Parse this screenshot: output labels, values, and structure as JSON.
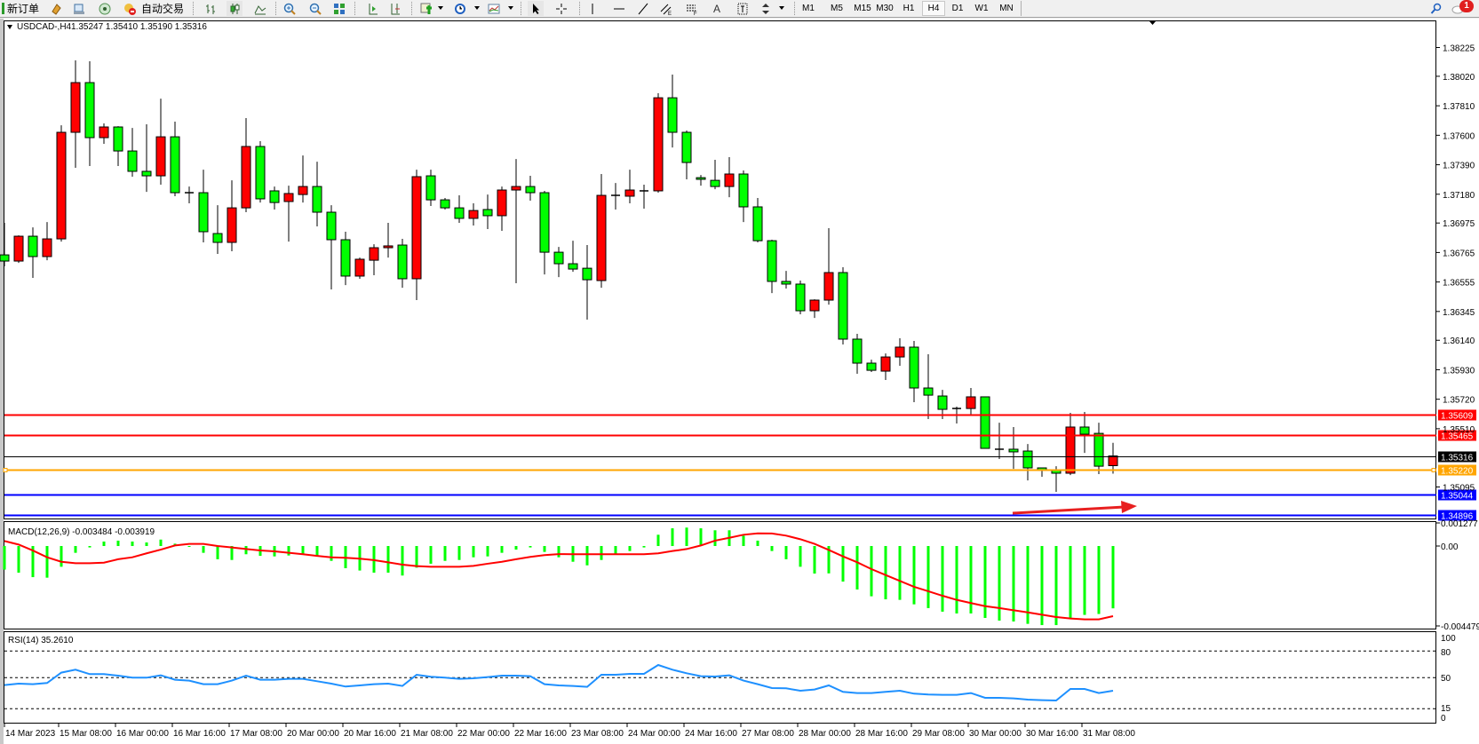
{
  "toolbar": {
    "new_order": "新订单",
    "auto_trading": "自动交易",
    "timeframes": [
      "M1",
      "M5",
      "M15",
      "M30",
      "H1",
      "H4",
      "D1",
      "W1",
      "MN"
    ],
    "active_timeframe": "H4",
    "notification_count": "1",
    "icons": [
      "new-order-icon",
      "market-watch-icon",
      "navigator-icon",
      "signals-icon",
      "auto-trading-icon",
      "bar-chart-icon",
      "candlestick-icon",
      "line-chart-icon",
      "zoom-in-icon",
      "zoom-out-icon",
      "tile-windows-icon",
      "auto-scroll-icon",
      "chart-shift-icon",
      "indicators-icon",
      "periods-icon",
      "templates-icon",
      "cursor-icon",
      "crosshair-icon",
      "vertical-line-icon",
      "horizontal-line-icon",
      "trendline-icon",
      "equidistant-channel-icon",
      "fibonacci-icon",
      "text-icon",
      "text-label-icon",
      "arrows-icon",
      "search-icon",
      "chat-icon"
    ]
  },
  "chart_data": {
    "type": "candlestick",
    "symbol": "USDCAD-,H4",
    "ohlc_readout": "1.35247 1.35410 1.35190 1.35316",
    "colors": {
      "bull": "#ff0000",
      "bear": "#00ff00",
      "outline": "#000000"
    },
    "price": {
      "axis_ticks": [
        "1.38225",
        "1.38020",
        "1.37810",
        "1.37600",
        "1.37390",
        "1.37180",
        "1.36975",
        "1.36765",
        "1.36555",
        "1.36345",
        "1.36140",
        "1.35930",
        "1.35720",
        "1.35510",
        "1.35095"
      ],
      "candles_ohlc": [
        [
          1.36748,
          1.36976,
          1.36666,
          1.36704
        ],
        [
          1.36704,
          1.36887,
          1.36691,
          1.36881
        ],
        [
          1.36881,
          1.36944,
          1.36584,
          1.36736
        ],
        [
          1.36736,
          1.36982,
          1.3671,
          1.36862
        ],
        [
          1.36862,
          1.37671,
          1.36843,
          1.37621
        ],
        [
          1.37621,
          1.38133,
          1.37368,
          1.37975
        ],
        [
          1.37975,
          1.38127,
          1.37381,
          1.37583
        ],
        [
          1.37583,
          1.37684,
          1.37539,
          1.37659
        ],
        [
          1.37659,
          1.37665,
          1.37381,
          1.37488
        ],
        [
          1.37488,
          1.37652,
          1.37305,
          1.37343
        ],
        [
          1.37343,
          1.37678,
          1.37197,
          1.37311
        ],
        [
          1.37311,
          1.37861,
          1.37248,
          1.37589
        ],
        [
          1.37589,
          1.37697,
          1.37166,
          1.37191
        ],
        [
          1.37191,
          1.37235,
          1.37115,
          1.37185
        ],
        [
          1.37191,
          1.37355,
          1.36837,
          1.36913
        ],
        [
          1.369,
          1.37102,
          1.36755,
          1.36837
        ],
        [
          1.36837,
          1.37279,
          1.36774,
          1.37083
        ],
        [
          1.37083,
          1.37722,
          1.37052,
          1.3752
        ],
        [
          1.3752,
          1.37558,
          1.37121,
          1.37147
        ],
        [
          1.37204,
          1.37235,
          1.37071,
          1.37121
        ],
        [
          1.37128,
          1.37241,
          1.36843,
          1.37185
        ],
        [
          1.37178,
          1.37456,
          1.37121,
          1.37235
        ],
        [
          1.37235,
          1.37412,
          1.36951,
          1.37052
        ],
        [
          1.37052,
          1.37102,
          1.36502,
          1.36856
        ],
        [
          1.36856,
          1.36913,
          1.36533,
          1.36597
        ],
        [
          1.36597,
          1.36729,
          1.36578,
          1.36717
        ],
        [
          1.3671,
          1.36824,
          1.36603,
          1.36799
        ],
        [
          1.36799,
          1.36976,
          1.36729,
          1.36812
        ],
        [
          1.36818,
          1.36862,
          1.36514,
          1.36578
        ],
        [
          1.36578,
          1.37355,
          1.36426,
          1.37305
        ],
        [
          1.37311,
          1.37355,
          1.37096,
          1.3714
        ],
        [
          1.3714,
          1.37153,
          1.37071,
          1.37083
        ],
        [
          1.37083,
          1.37172,
          1.36976,
          1.37008
        ],
        [
          1.37008,
          1.37115,
          1.36957,
          1.37064
        ],
        [
          1.37071,
          1.37178,
          1.36932,
          1.37027
        ],
        [
          1.37027,
          1.37235,
          1.36919,
          1.3721
        ],
        [
          1.3721,
          1.37431,
          1.36546,
          1.37235
        ],
        [
          1.37235,
          1.37311,
          1.37134,
          1.37191
        ],
        [
          1.37191,
          1.37204,
          1.36609,
          1.36767
        ],
        [
          1.36767,
          1.36805,
          1.3659,
          1.36685
        ],
        [
          1.36685,
          1.36849,
          1.36628,
          1.36647
        ],
        [
          1.36653,
          1.36818,
          1.36287,
          1.36571
        ],
        [
          1.36565,
          1.37324,
          1.36514,
          1.37172
        ],
        [
          1.37172,
          1.3726,
          1.37071,
          1.37169
        ],
        [
          1.37166,
          1.37355,
          1.37115,
          1.3721
        ],
        [
          1.37204,
          1.37248,
          1.37077,
          1.37201
        ],
        [
          1.37204,
          1.37899,
          1.37191,
          1.37867
        ],
        [
          1.37867,
          1.38032,
          1.37513,
          1.37621
        ],
        [
          1.37621,
          1.37634,
          1.37286,
          1.37406
        ],
        [
          1.37298,
          1.37317,
          1.37241,
          1.37286
        ],
        [
          1.37279,
          1.37425,
          1.37216,
          1.37235
        ],
        [
          1.37235,
          1.37444,
          1.37159,
          1.37324
        ],
        [
          1.37324,
          1.37349,
          1.36982,
          1.3709
        ],
        [
          1.3709,
          1.37153,
          1.36837,
          1.36849
        ],
        [
          1.36849,
          1.36856,
          1.36476,
          1.36559
        ],
        [
          1.36559,
          1.36634,
          1.36508,
          1.3654
        ],
        [
          1.3654,
          1.36565,
          1.36325,
          1.3635
        ],
        [
          1.3635,
          1.36432,
          1.36299,
          1.36426
        ],
        [
          1.36426,
          1.36938,
          1.36394,
          1.36622
        ],
        [
          1.36622,
          1.3666,
          1.3611,
          1.36148
        ],
        [
          1.36148,
          1.36186,
          1.35901,
          1.35977
        ],
        [
          1.35977,
          1.36002,
          1.35914,
          1.35926
        ],
        [
          1.3592,
          1.36046,
          1.35857,
          1.36021
        ],
        [
          1.36021,
          1.36154,
          1.35958,
          1.36091
        ],
        [
          1.36091,
          1.36135,
          1.35699,
          1.358
        ],
        [
          1.358,
          1.3604,
          1.35579,
          1.35749
        ],
        [
          1.35743,
          1.35787,
          1.35579,
          1.35648
        ],
        [
          1.35654,
          1.35667,
          1.35547,
          1.3565
        ],
        [
          1.35654,
          1.358,
          1.3561,
          1.35737
        ],
        [
          1.35737,
          1.3574,
          1.3537,
          1.3537
        ],
        [
          1.35364,
          1.35553,
          1.35294,
          1.35362
        ],
        [
          1.35364,
          1.35522,
          1.35224,
          1.35345
        ],
        [
          1.35351,
          1.35401,
          1.35142,
          1.35231
        ],
        [
          1.35231,
          1.35233,
          1.35168,
          1.35212
        ],
        [
          1.35212,
          1.35243,
          1.3506,
          1.35193
        ],
        [
          1.35193,
          1.35623,
          1.3518,
          1.35522
        ],
        [
          1.35522,
          1.35629,
          1.35338,
          1.35471
        ],
        [
          1.35477,
          1.35553,
          1.35187,
          1.35243
        ],
        [
          1.35247,
          1.3541,
          1.3519,
          1.35316
        ]
      ],
      "levels": [
        {
          "price": "1.35609",
          "color": "#ff0000",
          "kind": "horizontal-line"
        },
        {
          "price": "1.35465",
          "color": "#ff0000",
          "kind": "horizontal-line"
        },
        {
          "price": "1.35316",
          "color": "#000000",
          "kind": "bid-line"
        },
        {
          "price": "1.35220",
          "color": "#ffa500",
          "kind": "horizontal-line"
        },
        {
          "price": "1.35044",
          "color": "#0000ff",
          "kind": "horizontal-line"
        },
        {
          "price": "1.34896",
          "color": "#0000ff",
          "kind": "horizontal-line"
        }
      ],
      "arrow_color": "#e82020"
    },
    "macd": {
      "title": "MACD(12,26,9) -0.003484 -0.003919",
      "axis_ticks": [
        "0.001277",
        "0.00",
        "-0.004479"
      ],
      "histogram_color": "#00ff00",
      "signal_color": "#ff0000",
      "histogram": [
        -0.00132,
        -0.00149,
        -0.00174,
        -0.00177,
        -0.00116,
        -0.00038,
        -8e-05,
        0.00025,
        0.0003,
        0.00025,
        0.0002,
        0.00036,
        0.00013,
        0.0,
        -0.00038,
        -0.00074,
        -0.00078,
        -0.00046,
        -0.00055,
        -0.00058,
        -0.00053,
        -0.00045,
        -0.00058,
        -0.00083,
        -0.00124,
        -0.00137,
        -0.00149,
        -0.00149,
        -0.00165,
        -0.00121,
        -0.00099,
        -0.00083,
        -0.00078,
        -0.00063,
        -0.00058,
        -0.00038,
        -0.0002,
        -8e-05,
        -0.00033,
        -0.00063,
        -0.00088,
        -0.00108,
        -0.00078,
        -0.00045,
        -0.00028,
        -8e-05,
        0.00063,
        0.00099,
        0.00103,
        0.00099,
        0.00088,
        0.00088,
        0.00058,
        0.0003,
        -0.00028,
        -0.00074,
        -0.00116,
        -0.00154,
        -0.00153,
        -0.00199,
        -0.00243,
        -0.00281,
        -0.00298,
        -0.00301,
        -0.00326,
        -0.00347,
        -0.00367,
        -0.00377,
        -0.00377,
        -0.00402,
        -0.00417,
        -0.00422,
        -0.00435,
        -0.00442,
        -0.00442,
        -0.00405,
        -0.00385,
        -0.0038,
        -0.003484
      ],
      "signal": [
        0.00028,
        8e-05,
        -0.00025,
        -0.00063,
        -0.00088,
        -0.00096,
        -0.00096,
        -0.00093,
        -0.00074,
        -0.00063,
        -0.00041,
        -0.0002,
        3e-05,
        0.00012,
        0.00012,
        0.0,
        -8e-05,
        -0.00017,
        -0.00025,
        -0.0003,
        -0.00038,
        -0.00046,
        -0.00055,
        -0.00063,
        -0.00066,
        -0.00071,
        -0.00079,
        -0.00091,
        -0.00104,
        -0.00112,
        -0.00116,
        -0.00116,
        -0.00116,
        -0.00111,
        -0.00099,
        -0.00088,
        -0.00074,
        -0.00061,
        -0.00051,
        -0.00045,
        -0.00046,
        -0.00046,
        -0.00046,
        -0.00046,
        -0.00046,
        -0.00046,
        -0.00041,
        -0.00028,
        -0.00017,
        3e-05,
        0.0003,
        0.00046,
        0.00063,
        0.00071,
        0.0007,
        0.00058,
        0.00038,
        0.00012,
        -0.00022,
        -0.00058,
        -0.00091,
        -0.00129,
        -0.00162,
        -0.00195,
        -0.00228,
        -0.00253,
        -0.00278,
        -0.00301,
        -0.00319,
        -0.00336,
        -0.00347,
        -0.00359,
        -0.00371,
        -0.00384,
        -0.00397,
        -0.00405,
        -0.0041,
        -0.0041,
        -0.003919
      ]
    },
    "rsi": {
      "title": "RSI(14) 35.2610",
      "axis_ticks": [
        "100",
        "80",
        "50",
        "15",
        "0"
      ],
      "levels": [
        80,
        50,
        15
      ],
      "color": "#1e90ff",
      "values": [
        41.7,
        43.3,
        42.7,
        44,
        55.7,
        59,
        54,
        54,
        52.3,
        50,
        50,
        52.7,
        47.7,
        46.7,
        42.7,
        42.7,
        46.7,
        52.3,
        47.7,
        47.7,
        48.7,
        48.7,
        46,
        43.3,
        40,
        41.3,
        42.7,
        43.3,
        40.7,
        53.3,
        51,
        50,
        48.7,
        49.3,
        50.7,
        52.3,
        52.3,
        51.7,
        42.7,
        41.3,
        40.7,
        39.7,
        53.3,
        53.3,
        54.3,
        54.3,
        64.3,
        59,
        55,
        51.7,
        51.3,
        52.7,
        46.7,
        42.7,
        38.3,
        38,
        35.3,
        36.7,
        41.3,
        34,
        32.7,
        32.7,
        34,
        35.3,
        32,
        31,
        30.7,
        30.7,
        32.7,
        27.3,
        27.3,
        26.7,
        25.3,
        24.7,
        24.3,
        37.3,
        37.3,
        32.7,
        35.261
      ]
    },
    "time_axis": [
      "14 Mar 2023",
      "15 Mar 08:00",
      "16 Mar 00:00",
      "16 Mar 16:00",
      "17 Mar 08:00",
      "20 Mar 00:00",
      "20 Mar 16:00",
      "21 Mar 08:00",
      "22 Mar 00:00",
      "22 Mar 16:00",
      "23 Mar 08:00",
      "24 Mar 00:00",
      "24 Mar 16:00",
      "27 Mar 08:00",
      "28 Mar 00:00",
      "28 Mar 16:00",
      "29 Mar 08:00",
      "30 Mar 00:00",
      "30 Mar 16:00",
      "31 Mar 08:00"
    ]
  }
}
